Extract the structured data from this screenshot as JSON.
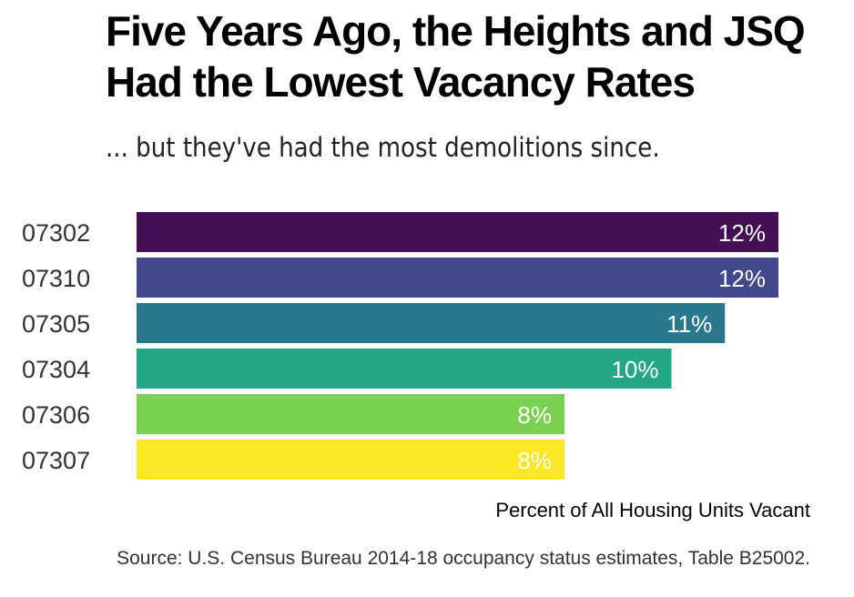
{
  "chart_data": {
    "type": "bar",
    "orientation": "horizontal",
    "title": "Five Years Ago, the Heights and JSQ Had the Lowest Vacancy Rates",
    "subtitle": "... but they've had the most demolitions since.",
    "xlabel": "Percent of All Housing Units Vacant",
    "source": "Source: U.S. Census Bureau 2014-18 occupancy status estimates, Table B25002.",
    "categories": [
      "07302",
      "07310",
      "07305",
      "07304",
      "07306",
      "07307"
    ],
    "values": [
      12,
      12,
      11,
      10,
      8,
      8
    ],
    "value_labels": [
      "12%",
      "12%",
      "11%",
      "10%",
      "8%",
      "8%"
    ],
    "xlim": [
      0,
      12
    ],
    "grid": false,
    "legend": "none",
    "colors": [
      "#440f54",
      "#41488b",
      "#2a788e",
      "#22a884",
      "#7ad151",
      "#fde725"
    ]
  }
}
